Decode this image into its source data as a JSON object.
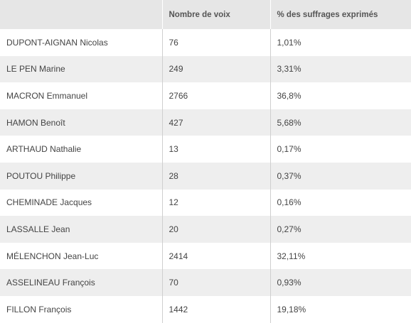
{
  "table": {
    "headers": [
      "",
      "Nombre de voix",
      "% des suffrages exprimés"
    ],
    "rows": [
      {
        "candidate": "DUPONT-AIGNAN Nicolas",
        "votes": "76",
        "percent": "1,01%"
      },
      {
        "candidate": "LE PEN Marine",
        "votes": "249",
        "percent": "3,31%"
      },
      {
        "candidate": "MACRON Emmanuel",
        "votes": "2766",
        "percent": "36,8%"
      },
      {
        "candidate": "HAMON Benoît",
        "votes": "427",
        "percent": "5,68%"
      },
      {
        "candidate": "ARTHAUD Nathalie",
        "votes": "13",
        "percent": "0,17%"
      },
      {
        "candidate": "POUTOU Philippe",
        "votes": "28",
        "percent": "0,37%"
      },
      {
        "candidate": "CHEMINADE Jacques",
        "votes": "12",
        "percent": "0,16%"
      },
      {
        "candidate": "LASSALLE Jean",
        "votes": "20",
        "percent": "0,27%"
      },
      {
        "candidate": "MÉLENCHON Jean-Luc",
        "votes": "2414",
        "percent": "32,11%"
      },
      {
        "candidate": "ASSELINEAU François",
        "votes": "70",
        "percent": "0,93%"
      },
      {
        "candidate": "FILLON François",
        "votes": "1442",
        "percent": "19,18%"
      }
    ]
  }
}
